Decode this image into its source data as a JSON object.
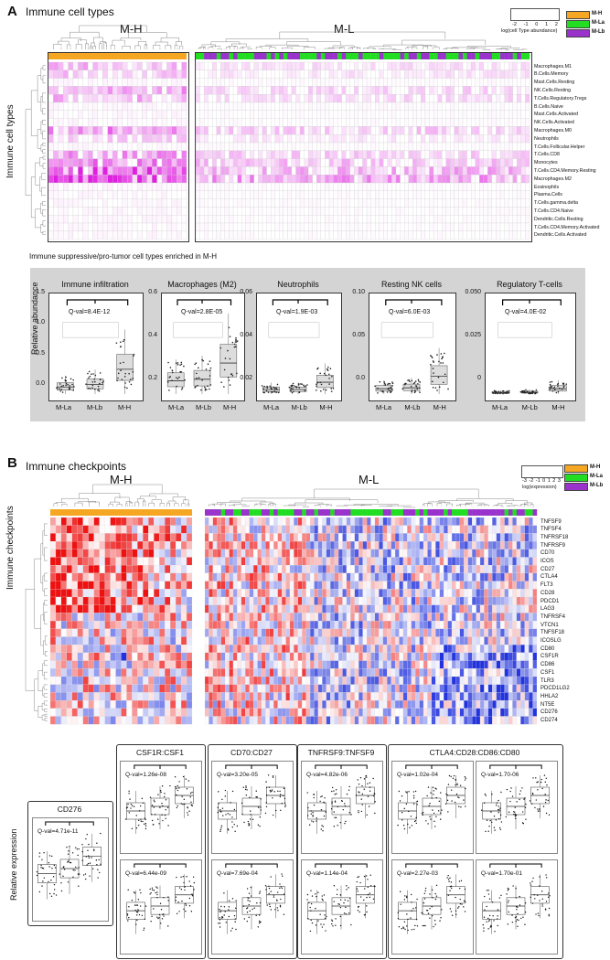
{
  "panelA": {
    "letter": "A",
    "title": "Immune cell types",
    "group_mh": "M-H",
    "group_ml": "M-L",
    "y_title": "Immune cell types",
    "legend_scale_label": "log(cell Type abundance)",
    "legend_ticks": [
      "-2",
      "-1",
      "0",
      "1",
      "2"
    ],
    "legend": [
      {
        "label": "M-H",
        "color": "#f5a623"
      },
      {
        "label": "M-La",
        "color": "#22dd22"
      },
      {
        "label": "M-Lb",
        "color": "#9933cc"
      }
    ],
    "rows": [
      "Macrophages.M1",
      "B.Cells.Memory",
      "Mast.Cells.Resting",
      "NK.Cells.Resting",
      "T.Cells.Regulatory.Tregs",
      "B.Cells.Naive",
      "Mast.Cells.Activated",
      "NK.Cells.Activated",
      "Macrophages.M0",
      "Neutrophils",
      "T.Cells.Follicular.Helper",
      "T.Cells.CD8",
      "Monocytes",
      "T.Cells.CD4.Memory.Resting",
      "Macrophages.M2",
      "Eosinophils",
      "Plasma.Cells",
      "T.Cells.gamma.delta",
      "T.Cells.CD4.Naive",
      "Dendritic.Cells.Resting",
      "T.Cells.CD4.Memory.Activated",
      "Dendritic.Cells.Activated"
    ],
    "heat_low_color": "#ffffff",
    "heat_high_color": "#e020e0"
  },
  "panelA_box": {
    "title": "Immune suppressive/pro-tumor cell types enriched in M-H",
    "y_title": "Relative abundance",
    "groups": [
      "M-La",
      "M-Lb",
      "M-H"
    ],
    "panels": [
      {
        "name": "Immune infiltration",
        "qval": "Q-val=8.4E-12",
        "yticks": [
          "1.5",
          "1.0",
          "0.5",
          "0.0"
        ],
        "medians": [
          0.12,
          0.16,
          0.42
        ]
      },
      {
        "name": "Macrophages (M2)",
        "qval": "Q-val=2.8E-05",
        "yticks": [
          "0.6",
          "0.4",
          "0.2"
        ],
        "medians": [
          0.09,
          0.1,
          0.21
        ]
      },
      {
        "name": "Neutrophils",
        "qval": "Q-val=1.9E-03",
        "yticks": [
          "0.06",
          "0.04",
          "0.02"
        ],
        "medians": [
          0.003,
          0.003,
          0.008
        ]
      },
      {
        "name": "Resting NK cells",
        "qval": "Q-val=6.0E-03",
        "yticks": [
          "0.10",
          "0.05",
          "0.0"
        ],
        "medians": [
          0.006,
          0.007,
          0.02
        ]
      },
      {
        "name": "Regulatory T-cells",
        "qval": "Q-val=4.0E-02",
        "yticks": [
          "0.050",
          "0.025",
          "0"
        ],
        "medians": [
          0.0008,
          0.001,
          0.003
        ]
      }
    ]
  },
  "panelB": {
    "letter": "B",
    "title": "Immune checkpoints",
    "group_mh": "M-H",
    "group_ml": "M-L",
    "y_title": "Immune checkpoints",
    "legend_scale_label": "log(expression)",
    "legend_ticks": [
      "-3",
      "-2",
      "-1",
      "0",
      "1",
      "2",
      "3"
    ],
    "legend": [
      {
        "label": "M-H",
        "color": "#f5a623"
      },
      {
        "label": "M-La",
        "color": "#22dd22"
      },
      {
        "label": "M-Lb",
        "color": "#9933cc"
      }
    ],
    "rows": [
      "TNFSF9",
      "TNFSF4",
      "TNFRSF18",
      "TNFRSF9",
      "CD70",
      "ICOS",
      "CD27",
      "CTLA4",
      "FLT3",
      "CD28",
      "PDCD1",
      "LAG3",
      "TNFRSF4",
      "VTCN1",
      "TNFSF18",
      "ICOSLG",
      "CD80",
      "CSF1R",
      "CD86",
      "CSF1",
      "TLR3",
      "PDCD1LG2",
      "HHLA2",
      "NT5E",
      "CD276",
      "CD274"
    ],
    "heat_low_color": "#2233dd",
    "heat_high_color": "#ee1111"
  },
  "panelB_box": {
    "y_title": "Relative expression",
    "cd276": {
      "title": "CD276",
      "qval": "Q-val=4.71e-11"
    },
    "pairs": [
      {
        "title": "CSF1R:CSF1",
        "top_q": "Q-val=1.26e-08",
        "bottom_q": "Q-val=6.44e-09"
      },
      {
        "title": "CD70:CD27",
        "top_q": "Q-val=3.20e-05",
        "bottom_q": "Q-val=7.69e-04"
      },
      {
        "title": "TNFRSF9:TNFSF9",
        "top_q": "Q-val=4.82e-06",
        "bottom_q": "Q-val=1.14e-04"
      }
    ],
    "quad": {
      "title": "CTLA4:CD28:CD86:CD80",
      "q": [
        "Q-val=1.02e-04",
        "Q-val=1.70-06",
        "Q-val=2.27e-03",
        "Q-val=1.70e-01"
      ]
    }
  }
}
